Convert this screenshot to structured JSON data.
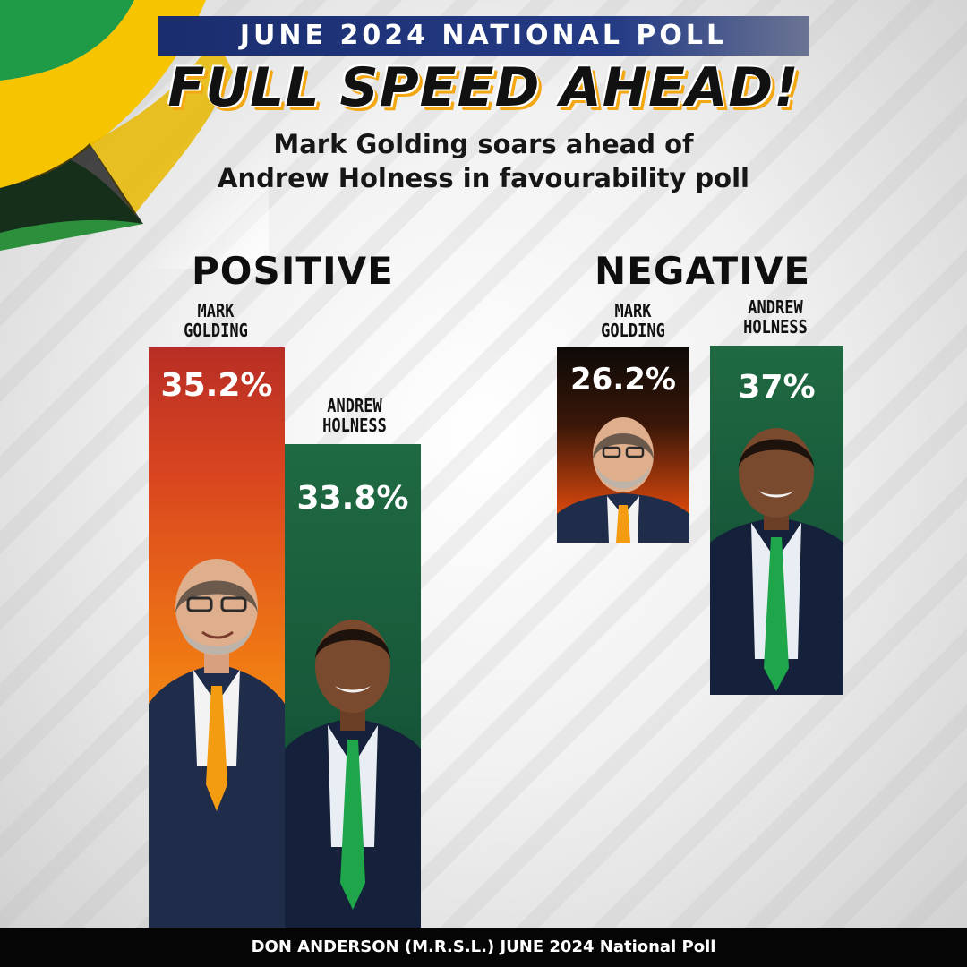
{
  "banner": "JUNE 2024 NATIONAL POLL",
  "headline": "FULL SPEED AHEAD!",
  "subhead": [
    "Mark Golding soars ahead of",
    "Andrew Holness in favourability poll"
  ],
  "footer": "DON ANDERSON (M.R.S.L.)  JUNE 2024 National Poll",
  "colors": {
    "flag_green": "#1f9a46",
    "flag_gold": "#f6c400",
    "pnp_orange": "#f07a14",
    "jlp_green": "#17583a",
    "banner_blue": "#243b86"
  },
  "chart_data": [
    {
      "type": "bar",
      "title": "POSITIVE",
      "categories": [
        [
          "MARK",
          "GOLDING"
        ],
        [
          "ANDREW",
          "HOLNESS"
        ]
      ],
      "values": [
        35.2,
        33.8
      ],
      "value_labels": [
        "35.2%",
        "33.8%"
      ],
      "series_colors": [
        "#d9451f",
        "#17583a"
      ]
    },
    {
      "type": "bar",
      "title": "NEGATIVE",
      "categories": [
        [
          "MARK",
          "GOLDING"
        ],
        [
          "ANDREW",
          "HOLNESS"
        ]
      ],
      "values": [
        26.2,
        37
      ],
      "value_labels": [
        "26.2%",
        "37%"
      ],
      "series_colors": [
        "#3a1708",
        "#17583a"
      ]
    }
  ]
}
